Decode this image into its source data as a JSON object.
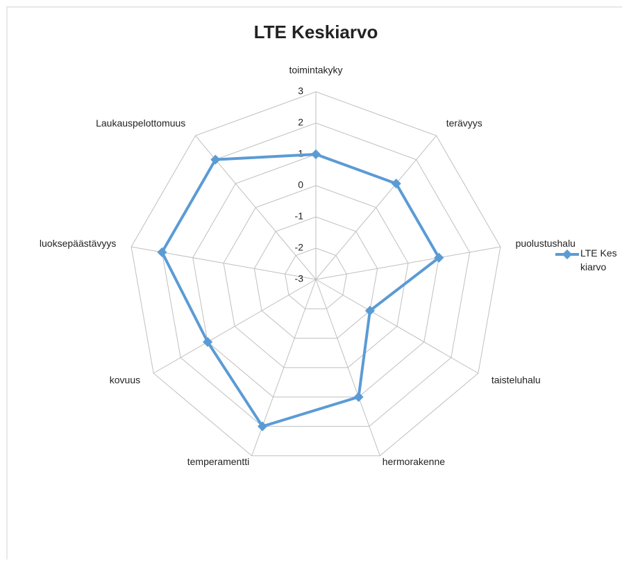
{
  "chart_data": {
    "type": "radar",
    "title": "LTE Keskiarvo",
    "categories": [
      "toimintakyky",
      "terävyys",
      "puolustushalu",
      "taisteluhalu",
      "hermorakenne",
      "temperamentti",
      "kovuus",
      "luoksepäästävyys",
      "Laukauspelottomuus"
    ],
    "series": [
      {
        "name": "LTE Keskiarvo",
        "color": "#5b9bd5",
        "values": [
          1,
          1,
          1,
          -1,
          1,
          2,
          1,
          2,
          2
        ]
      }
    ],
    "ylim": [
      -3,
      3
    ],
    "yticks": [
      -3,
      -2,
      -1,
      0,
      1,
      2,
      3
    ],
    "grid": true,
    "legend": "right"
  }
}
